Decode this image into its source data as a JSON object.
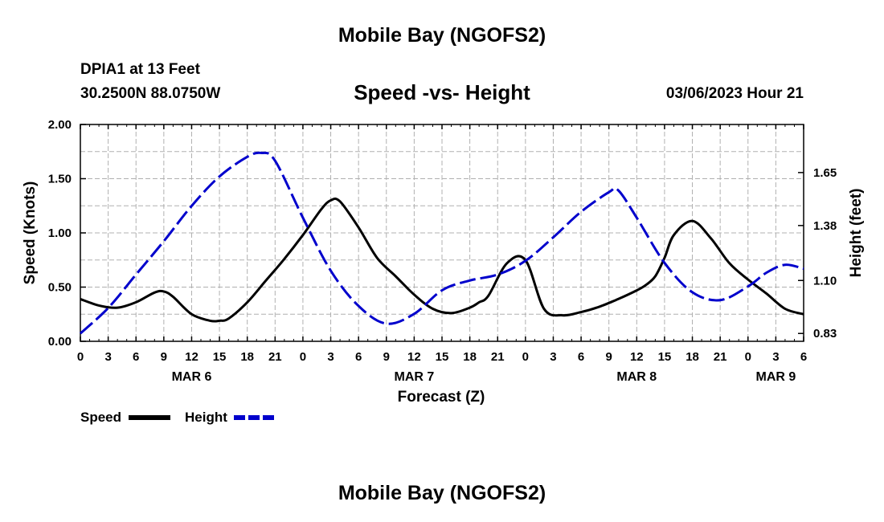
{
  "header": {
    "title": "Mobile Bay (NGOFS2)",
    "station": "DPIA1 at 13 Feet",
    "coords": "30.2500N  88.0750W",
    "datetime": "03/06/2023 Hour 21",
    "footer_title": "Mobile Bay (NGOFS2)"
  },
  "chart_data": {
    "type": "line",
    "title": "Speed -vs- Height",
    "xlabel": "Forecast (Z)",
    "ylabel": "Speed (Knots)",
    "y2label": "Height (feet)",
    "x_unit": "hours from MAR 6 00Z",
    "xlim": [
      0,
      78
    ],
    "ylim": [
      0,
      2.0
    ],
    "y2lim": [
      0.79,
      1.895
    ],
    "x_ticks": [
      0,
      3,
      6,
      9,
      12,
      15,
      18,
      21,
      24,
      27,
      30,
      33,
      36,
      39,
      42,
      45,
      48,
      51,
      54,
      57,
      60,
      63,
      66,
      69,
      72,
      75,
      78
    ],
    "x_tick_labels": [
      "0",
      "3",
      "6",
      "9",
      "12",
      "15",
      "18",
      "21",
      "0",
      "3",
      "6",
      "9",
      "12",
      "15",
      "18",
      "21",
      "0",
      "3",
      "6",
      "9",
      "12",
      "15",
      "18",
      "21",
      "0",
      "3",
      "6"
    ],
    "date_labels": [
      {
        "x": 12,
        "label": "MAR 6"
      },
      {
        "x": 36,
        "label": "MAR 7"
      },
      {
        "x": 60,
        "label": "MAR 8"
      },
      {
        "x": 75,
        "label": "MAR 9"
      }
    ],
    "y_ticks": [
      0.0,
      0.5,
      1.0,
      1.5,
      2.0
    ],
    "y_tick_labels": [
      "0.00",
      "0.50",
      "1.00",
      "1.50",
      "2.00"
    ],
    "y2_ticks": [
      0.83,
      1.1,
      1.38,
      1.65
    ],
    "y2_tick_labels": [
      "0.83",
      "1.10",
      "1.38",
      "1.65"
    ],
    "grid": true,
    "series": [
      {
        "name": "Speed",
        "axis": "left",
        "color": "#000000",
        "dash": "solid",
        "x": [
          0,
          2,
          4,
          6,
          8,
          9,
          10,
          12,
          14,
          15,
          16,
          18,
          20,
          22,
          24,
          26,
          27,
          28,
          30,
          32,
          34,
          36,
          38,
          40,
          42,
          43,
          44,
          46,
          48,
          50,
          52,
          54,
          56,
          58,
          60,
          61,
          62,
          63,
          64,
          66,
          68,
          70,
          72,
          74,
          76,
          78
        ],
        "values": [
          0.39,
          0.33,
          0.31,
          0.36,
          0.45,
          0.46,
          0.41,
          0.25,
          0.19,
          0.19,
          0.21,
          0.36,
          0.56,
          0.76,
          0.98,
          1.22,
          1.3,
          1.29,
          1.05,
          0.77,
          0.6,
          0.43,
          0.3,
          0.26,
          0.31,
          0.36,
          0.42,
          0.72,
          0.75,
          0.3,
          0.24,
          0.27,
          0.32,
          0.39,
          0.47,
          0.52,
          0.6,
          0.77,
          0.98,
          1.11,
          0.95,
          0.72,
          0.57,
          0.44,
          0.3,
          0.25
        ]
      },
      {
        "name": "Height",
        "axis": "right",
        "color": "#0000cc",
        "dash": "dashed",
        "x": [
          0,
          3,
          6,
          9,
          12,
          15,
          18,
          19.5,
          21,
          24,
          27,
          30,
          33,
          36,
          39,
          42,
          45,
          48,
          51,
          54,
          57,
          58,
          60,
          63,
          66,
          69,
          72,
          74,
          76,
          78
        ],
        "values": [
          0.83,
          0.96,
          1.13,
          1.3,
          1.48,
          1.63,
          1.73,
          1.75,
          1.71,
          1.42,
          1.15,
          0.97,
          0.88,
          0.93,
          1.05,
          1.1,
          1.13,
          1.2,
          1.32,
          1.45,
          1.55,
          1.56,
          1.42,
          1.19,
          1.04,
          1.0,
          1.07,
          1.14,
          1.18,
          1.16
        ]
      }
    ],
    "legend": [
      {
        "label": "Speed",
        "color": "#000000",
        "dash": "solid"
      },
      {
        "label": "Height",
        "color": "#0000cc",
        "dash": "dashed"
      }
    ],
    "legend_position": "bottom-left"
  }
}
